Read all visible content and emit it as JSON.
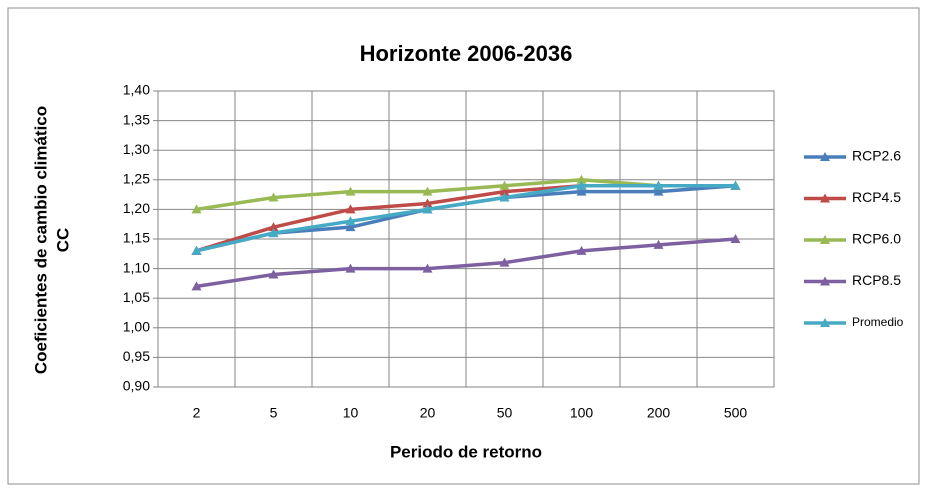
{
  "chart_data": {
    "type": "line",
    "title": "Horizonte 2006-2036",
    "x_label": "Periodo de retorno",
    "y_label_lines": [
      "Coeficientes de cambio climático",
      "CC"
    ],
    "categories": [
      "2",
      "5",
      "10",
      "20",
      "50",
      "100",
      "200",
      "500"
    ],
    "ylim": [
      0.9,
      1.4
    ],
    "yticks": [
      {
        "value": 0.9,
        "label": "0,90"
      },
      {
        "value": 0.95,
        "label": "0,95"
      },
      {
        "value": 1.0,
        "label": "1,00"
      },
      {
        "value": 1.05,
        "label": "1,05"
      },
      {
        "value": 1.1,
        "label": "1,10"
      },
      {
        "value": 1.15,
        "label": "1,15"
      },
      {
        "value": 1.2,
        "label": "1,20"
      },
      {
        "value": 1.25,
        "label": "1,25"
      },
      {
        "value": 1.3,
        "label": "1,30"
      },
      {
        "value": 1.35,
        "label": "1,35"
      },
      {
        "value": 1.4,
        "label": "1,40"
      }
    ],
    "grid": true,
    "legend": "right",
    "series": [
      {
        "name": "RCP2.6",
        "color": "#4a7ebb",
        "values": [
          1.13,
          1.16,
          1.17,
          1.2,
          1.22,
          1.23,
          1.23,
          1.24
        ]
      },
      {
        "name": "RCP4.5",
        "color": "#be4b48",
        "values": [
          1.13,
          1.17,
          1.2,
          1.21,
          1.23,
          1.24,
          1.24,
          1.24
        ]
      },
      {
        "name": "RCP6.0",
        "color": "#98b954",
        "values": [
          1.2,
          1.22,
          1.23,
          1.23,
          1.24,
          1.25,
          1.24,
          1.24
        ]
      },
      {
        "name": "RCP8.5",
        "color": "#7d60a0",
        "values": [
          1.07,
          1.09,
          1.1,
          1.1,
          1.11,
          1.13,
          1.14,
          1.15
        ]
      },
      {
        "name": "Promedio",
        "color": "#46aac5",
        "values": [
          1.13,
          1.16,
          1.18,
          1.2,
          1.22,
          1.24,
          1.24,
          1.24
        ]
      }
    ]
  }
}
